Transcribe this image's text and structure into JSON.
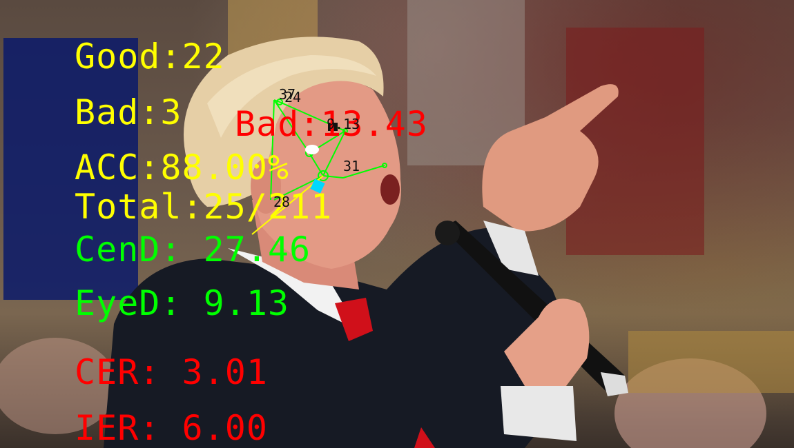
{
  "stats": {
    "good": "Good:22",
    "bad": "Bad:3",
    "acc": "ACC:88.00%",
    "total": "Total:25/211"
  },
  "metrics": {
    "cend": "CenD: 27.46",
    "eyed": "EyeD: 9.13",
    "cer": "CER: 3.01",
    "ier": "IER: 6.00"
  },
  "face_annotation": {
    "bad_label": "Bad:13.43",
    "point_labels": {
      "top_a": "37",
      "top_b": "24",
      "eye": "9.13",
      "right": "31",
      "lower": "28"
    }
  },
  "colors": {
    "stats_text": "#ffff00",
    "metric_good": "#00ff00",
    "metric_bad": "#ff0000",
    "landmarks": "#00ff00"
  }
}
